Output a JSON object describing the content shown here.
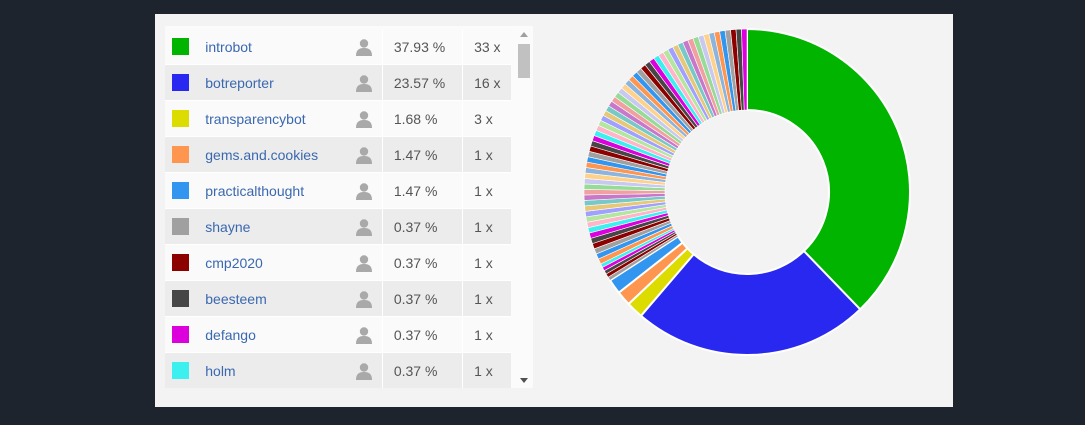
{
  "chart_data": {
    "type": "pie",
    "donut": true,
    "entries": [
      {
        "name": "introbot",
        "percent": 37.93,
        "count": 33,
        "count_label": "33 x",
        "percent_label": "37.93 %",
        "color": "#00b400"
      },
      {
        "name": "botreporter",
        "percent": 23.57,
        "count": 16,
        "count_label": "16 x",
        "percent_label": "23.57 %",
        "color": "#2828f0"
      },
      {
        "name": "transparencybot",
        "percent": 1.68,
        "count": 3,
        "count_label": "3 x",
        "percent_label": "1.68 %",
        "color": "#dcdc00"
      },
      {
        "name": "gems.and.cookies",
        "percent": 1.47,
        "count": 1,
        "count_label": "1 x",
        "percent_label": "1.47 %",
        "color": "#ff9650"
      },
      {
        "name": "practicalthought",
        "percent": 1.47,
        "count": 1,
        "count_label": "1 x",
        "percent_label": "1.47 %",
        "color": "#3296f0"
      },
      {
        "name": "shayne",
        "percent": 0.37,
        "count": 1,
        "count_label": "1 x",
        "percent_label": "0.37 %",
        "color": "#a0a0a0"
      },
      {
        "name": "cmp2020",
        "percent": 0.37,
        "count": 1,
        "count_label": "1 x",
        "percent_label": "0.37 %",
        "color": "#8c0000"
      },
      {
        "name": "beesteem",
        "percent": 0.37,
        "count": 1,
        "count_label": "1 x",
        "percent_label": "0.37 %",
        "color": "#464646"
      },
      {
        "name": "defango",
        "percent": 0.37,
        "count": 1,
        "count_label": "1 x",
        "percent_label": "0.37 %",
        "color": "#dc00dc"
      },
      {
        "name": "holm",
        "percent": 0.37,
        "count": 1,
        "count_label": "1 x",
        "percent_label": "0.37 %",
        "color": "#3cf0f0"
      }
    ],
    "other_slices": {
      "count": 60,
      "percent_each": 0.54
    }
  },
  "icons": {
    "user": "user-icon"
  }
}
